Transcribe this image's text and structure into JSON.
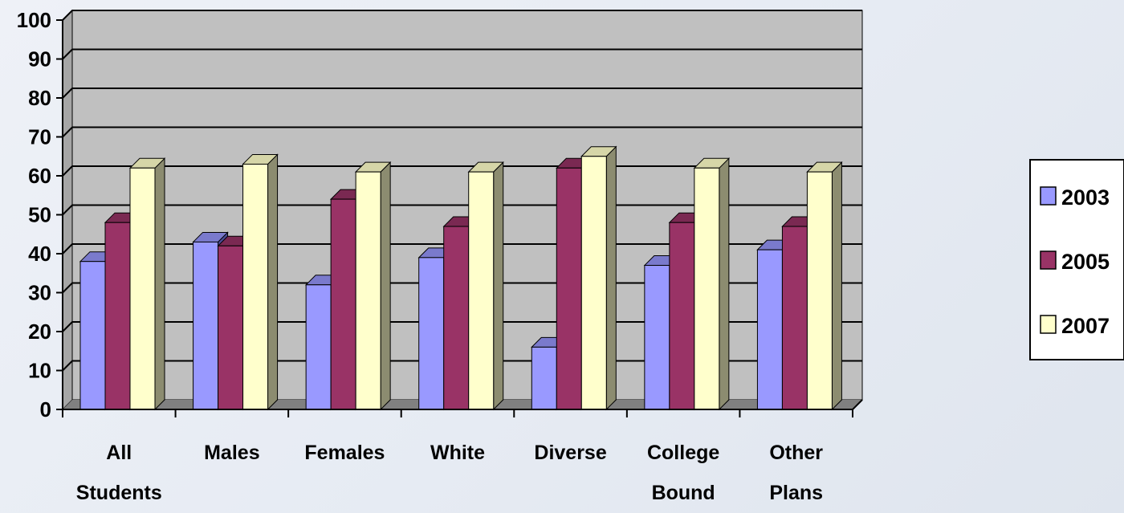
{
  "chart_data": {
    "type": "bar",
    "categories": [
      [
        "All",
        "Students"
      ],
      [
        "Males"
      ],
      [
        "Females"
      ],
      [
        "White"
      ],
      [
        "Diverse"
      ],
      [
        "College",
        "Bound"
      ],
      [
        "Other",
        "Plans"
      ]
    ],
    "series": [
      {
        "name": "2003",
        "values": [
          38,
          43,
          32,
          39,
          16,
          37,
          41
        ]
      },
      {
        "name": "2005",
        "values": [
          48,
          42,
          54,
          47,
          62,
          48,
          47
        ]
      },
      {
        "name": "2007",
        "values": [
          62,
          63,
          61,
          61,
          65,
          62,
          61
        ]
      }
    ],
    "y_ticks": [
      "0",
      "10",
      "20",
      "30",
      "40",
      "50",
      "60",
      "70",
      "80",
      "90",
      "100"
    ],
    "ylim": [
      0,
      100
    ],
    "grid": true,
    "legend_position": "right",
    "colors": {
      "series": [
        "#9999ff",
        "#993366",
        "#ffffcc"
      ],
      "series_side": [
        "#4d4d99",
        "#4d1a33",
        "#8c8c70"
      ],
      "series_top": [
        "#7a7acc",
        "#7a2952",
        "#d6d6a8"
      ],
      "plot_back": "#c0c0c0",
      "plot_floor": "#808080",
      "gridline": "#000000"
    }
  }
}
